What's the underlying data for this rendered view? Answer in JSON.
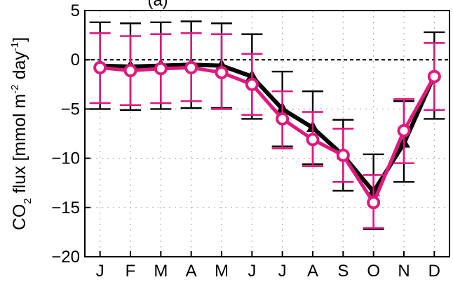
{
  "chart_data": {
    "type": "line",
    "title": "(a)",
    "xlabel": "",
    "ylabel": {
      "prefix": "CO",
      "subscript": "2",
      "middle": " flux [mmol m",
      "superscript1": "-2",
      "middle2": " day",
      "superscript2": "-1",
      "suffix": "]"
    },
    "categories": [
      "J",
      "F",
      "M",
      "A",
      "M",
      "J",
      "J",
      "A",
      "S",
      "O",
      "N",
      "D"
    ],
    "ylim": [
      -20,
      5
    ],
    "yticks": [
      5,
      0,
      -5,
      -10,
      -15,
      -20
    ],
    "ytick_labels": [
      "5",
      "0",
      "−5",
      "−10",
      "−15",
      "−20"
    ],
    "grid": true,
    "reference_line": 0,
    "series": [
      {
        "marker": "triangle",
        "color": "#000000",
        "values": [
          -0.6,
          -0.7,
          -0.6,
          -0.5,
          -0.6,
          -1.7,
          -5.0,
          -6.9,
          -9.7,
          -13.4,
          -8.5,
          -1.6
        ],
        "upper": [
          3.8,
          3.7,
          3.8,
          3.9,
          3.7,
          2.6,
          -1.2,
          -3.2,
          -6.1,
          -9.6,
          -4.2,
          2.8
        ],
        "lower": [
          -5.0,
          -5.1,
          -5.0,
          -4.9,
          -4.9,
          -6.0,
          -8.8,
          -10.6,
          -13.3,
          -17.2,
          -12.4,
          -6.0
        ]
      },
      {
        "marker": "circle",
        "color": "#e0197d",
        "values": [
          -0.8,
          -1.1,
          -0.9,
          -0.8,
          -1.3,
          -2.5,
          -6.0,
          -8.1,
          -9.7,
          -14.5,
          -7.2,
          -1.7
        ],
        "upper": [
          2.7,
          2.4,
          2.6,
          2.7,
          2.6,
          0.6,
          -3.2,
          -5.3,
          -7.0,
          -11.7,
          -4.0,
          1.7
        ],
        "lower": [
          -4.4,
          -4.6,
          -4.4,
          -4.2,
          -5.0,
          -5.6,
          -9.0,
          -10.8,
          -12.4,
          -17.1,
          -10.5,
          -5.1
        ]
      }
    ]
  }
}
